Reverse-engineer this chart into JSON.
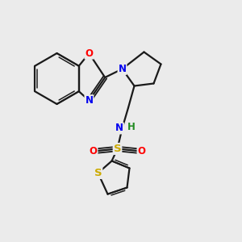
{
  "background_color": "#ebebeb",
  "bond_color": "#1a1a1a",
  "atom_colors": {
    "O": "#ff0000",
    "N": "#0000ee",
    "S_sulfonyl": "#ccaa00",
    "S_thiophene": "#ccaa00",
    "H": "#228b22",
    "C": "#1a1a1a"
  },
  "figsize": [
    3.0,
    3.0
  ],
  "dpi": 100
}
